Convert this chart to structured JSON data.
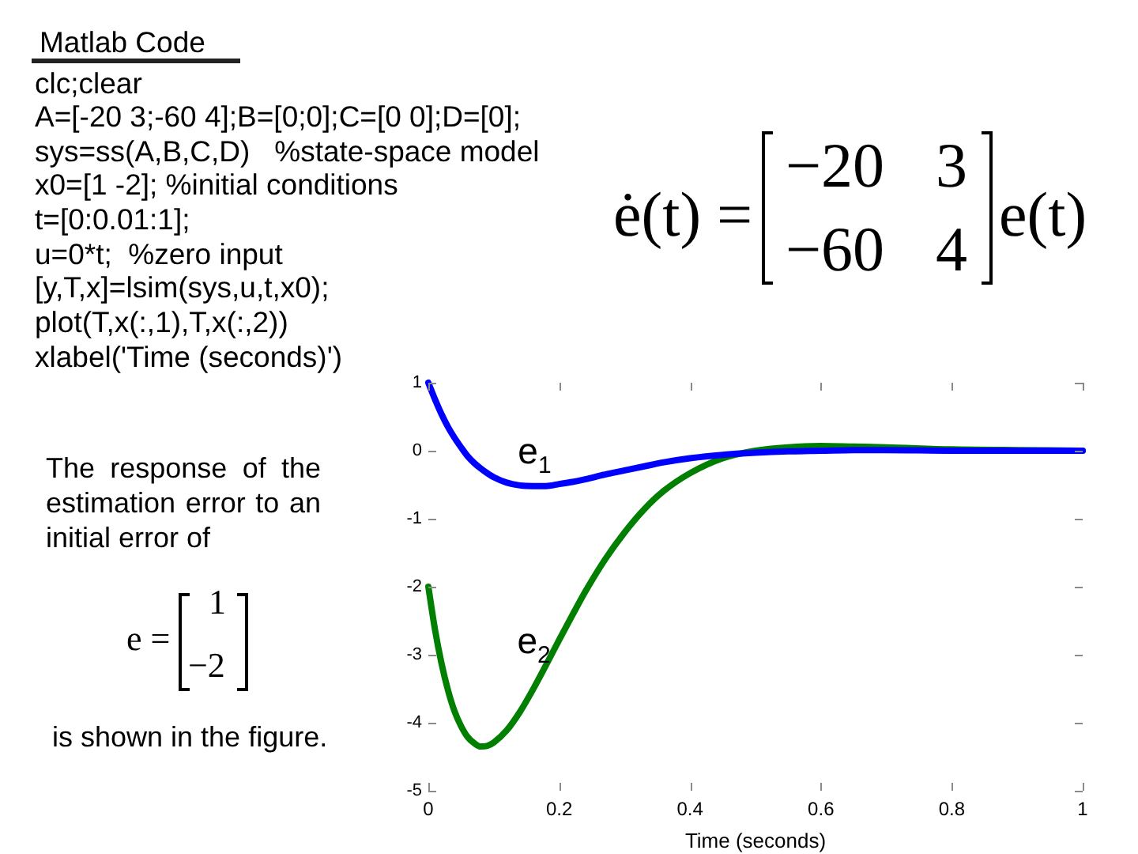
{
  "chart_data": {
    "type": "line",
    "xlabel": "Time (seconds)",
    "xlim": [
      0,
      1
    ],
    "ylim": [
      -5,
      1
    ],
    "xticks": [
      0,
      0.2,
      0.4,
      0.6,
      0.8,
      1
    ],
    "yticks": [
      -5,
      -4,
      -3,
      -2,
      -1,
      0,
      1
    ],
    "grid": false,
    "legend": false,
    "marker": "none",
    "line_style": "solid",
    "x": [
      0,
      0.01,
      0.02,
      0.03,
      0.04,
      0.05,
      0.06,
      0.07,
      0.08,
      0.09,
      0.1,
      0.12,
      0.14,
      0.16,
      0.18,
      0.2,
      0.22,
      0.24,
      0.27,
      0.3,
      0.33,
      0.36,
      0.4,
      0.45,
      0.5,
      0.55,
      0.6,
      0.65,
      0.7,
      0.8,
      0.9,
      1
    ],
    "series": [
      {
        "name": "e$_{1}$",
        "color": "#0000ff",
        "values": [
          1,
          0.76,
          0.54,
          0.35,
          0.19,
          0.05,
          -0.08,
          -0.18,
          -0.26,
          -0.33,
          -0.39,
          -0.47,
          -0.51,
          -0.52,
          -0.52,
          -0.49,
          -0.46,
          -0.42,
          -0.35,
          -0.29,
          -0.23,
          -0.17,
          -0.11,
          -0.06,
          -0.03,
          -0.01,
          0,
          0.01,
          0.01,
          0,
          0,
          0
        ]
      },
      {
        "name": "e$_{2}$",
        "color": "#007f00",
        "values": [
          -2,
          -2.62,
          -3.12,
          -3.52,
          -3.83,
          -4.05,
          -4.21,
          -4.3,
          -4.35,
          -4.34,
          -4.29,
          -4.11,
          -3.84,
          -3.51,
          -3.15,
          -2.78,
          -2.42,
          -2.07,
          -1.6,
          -1.2,
          -0.86,
          -0.59,
          -0.33,
          -0.11,
          0,
          0.05,
          0.07,
          0.06,
          0.05,
          0.02,
          0.01,
          0
        ]
      }
    ],
    "annotations": [
      "Matlab Code",
      "clc;clear",
      "A=[-20 3;-60 4];B=[0;0];C=[0 0];D=[0];",
      "sys=ss(A,B,C,D)   %state-space model",
      "x0=[1 -2]; %initial conditions",
      "t=[0:0.01:1];",
      "u=0*t;  %zero input",
      "[y,T,x]=lsim(sys,u,t,x0);",
      "plot(T,x(:,1),T,x(:,2))",
      "xlabel('Time (seconds)')",
      "ė(t) =",
      "−20",
      "3",
      "−60",
      "4",
      "e(t)",
      "The response of the estimation error to an initial error of",
      "e =",
      "1",
      "−2",
      "is shown in the figure."
    ]
  }
}
